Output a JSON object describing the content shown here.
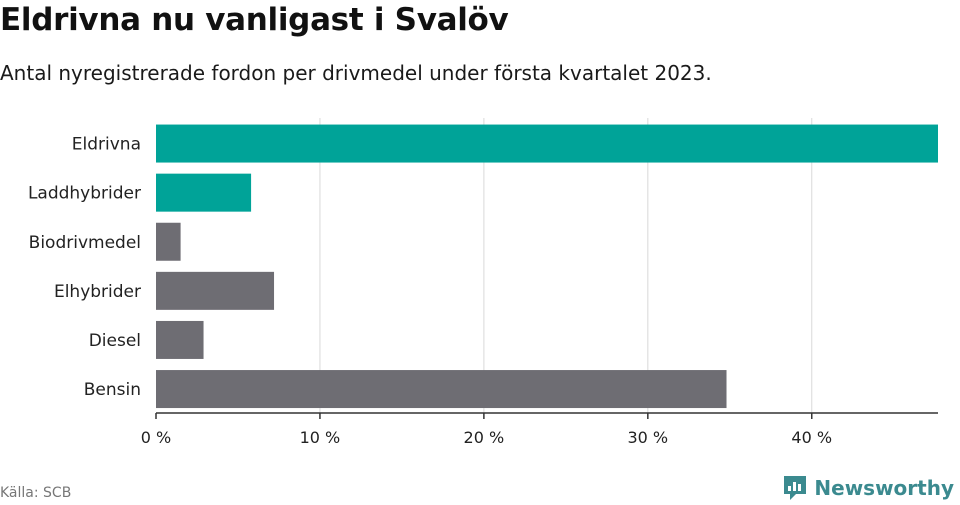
{
  "header": {
    "title": "Eldrivna nu vanligast i Svalöv",
    "subtitle": "Antal nyregistrerade fordon per drivmedel under första kvartalet 2023."
  },
  "footer": {
    "source": "Källa: SCB",
    "brand": "Newsworthy",
    "brand_icon": "newsworthy-logo-icon"
  },
  "colors": {
    "highlight": "#00a398",
    "default": "#6e6d73",
    "grid": "#d9d9d9",
    "axis": "#333333"
  },
  "chart_data": {
    "type": "bar",
    "orientation": "horizontal",
    "categories": [
      "Eldrivna",
      "Laddhybrider",
      "Biodrivmedel",
      "Elhybrider",
      "Diesel",
      "Bensin"
    ],
    "values": [
      47.7,
      5.8,
      1.5,
      7.2,
      2.9,
      34.8
    ],
    "highlighted": [
      true,
      true,
      false,
      false,
      false,
      false
    ],
    "xlim": [
      0,
      47.7
    ],
    "xticks": [
      0,
      10,
      20,
      30,
      40
    ],
    "tick_labels": [
      "0 %",
      "10 %",
      "20 %",
      "30 %",
      "40 %"
    ],
    "grid": true
  }
}
